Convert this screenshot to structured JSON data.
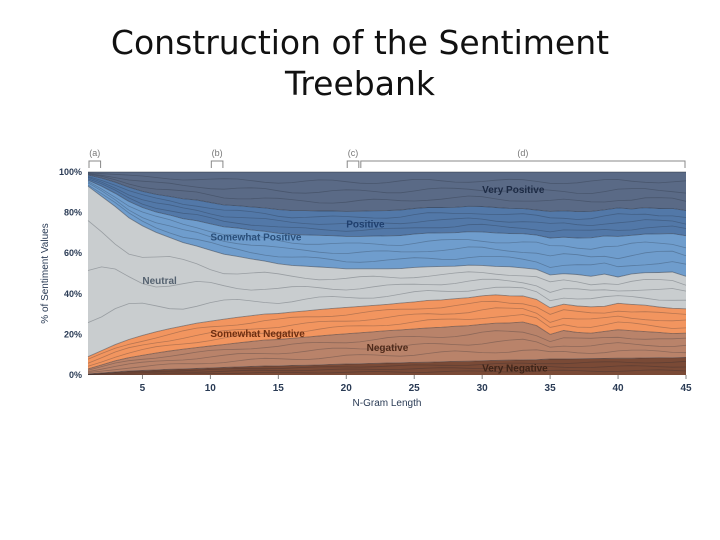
{
  "slide": {
    "title_line1": "Construction of the Sentiment",
    "title_line2": "Treebank"
  },
  "chart_data": {
    "type": "area",
    "stacked": true,
    "normalized": true,
    "xlabel": "N-Gram Length",
    "ylabel": "% of Sentiment Values",
    "x_ticks": [
      5,
      10,
      15,
      20,
      25,
      30,
      35,
      40,
      45
    ],
    "y_ticks": [
      "0%",
      "20%",
      "40%",
      "60%",
      "80%",
      "100%"
    ],
    "xlim": [
      1,
      45
    ],
    "ylim": [
      0,
      100
    ],
    "x": [
      1,
      2,
      3,
      4,
      5,
      6,
      7,
      8,
      9,
      10,
      11,
      12,
      13,
      14,
      15,
      16,
      17,
      18,
      19,
      20,
      21,
      22,
      23,
      24,
      25,
      26,
      27,
      28,
      29,
      30,
      31,
      32,
      33,
      34,
      35,
      36,
      37,
      38,
      39,
      40,
      41,
      42,
      43,
      44,
      45
    ],
    "series": [
      {
        "name": "Very Negative",
        "color": "#7a4a36",
        "values": [
          0.5,
          1,
          1.5,
          2,
          2.2,
          2.5,
          2.8,
          3,
          3.2,
          3.5,
          3.7,
          4,
          4.2,
          4.4,
          4.5,
          4.7,
          4.8,
          5,
          5.2,
          5.4,
          5.5,
          5.7,
          5.9,
          6,
          6.2,
          6.3,
          6.5,
          6.7,
          6.8,
          7,
          7.2,
          7.4,
          7.5,
          7.6,
          7.8,
          7.9,
          8,
          8.1,
          8.2,
          8.3,
          8.3,
          8.4,
          8.5,
          8.5,
          8.6
        ]
      },
      {
        "name": "Negative",
        "color": "#b9836a",
        "values": [
          2.5,
          4,
          5.5,
          6.5,
          7.5,
          8.3,
          9,
          9.7,
          10.3,
          10.8,
          11.3,
          11.8,
          12.3,
          12.7,
          13,
          13.4,
          13.8,
          14.2,
          14.6,
          14.9,
          15.3,
          15.6,
          15.9,
          16.2,
          16.5,
          16.8,
          17,
          17.3,
          17.5,
          18,
          18.3,
          18.5,
          18.8,
          17,
          12,
          14,
          13,
          12.5,
          13.5,
          14,
          13.5,
          13,
          12.5,
          12,
          12
        ]
      },
      {
        "name": "Somewhat Negative",
        "color": "#f2955f",
        "values": [
          6,
          7,
          8,
          9,
          9.8,
          10.5,
          11,
          11.5,
          12,
          12.2,
          12.5,
          12.6,
          12.7,
          12.8,
          12.8,
          12.9,
          13,
          13,
          13,
          13,
          13,
          13,
          13,
          13.2,
          13.3,
          13.5,
          13.5,
          13.6,
          13.8,
          14,
          14,
          13.5,
          13,
          13,
          13,
          13,
          13,
          13,
          12.5,
          13,
          13,
          13,
          12.5,
          12.5,
          12
        ]
      },
      {
        "name": "Neutral",
        "color": "#c9cdcf",
        "values": [
          84,
          76,
          68,
          60,
          54,
          49,
          45,
          41,
          38,
          35,
          32,
          30,
          28,
          26,
          24.5,
          23,
          22,
          21,
          20,
          19,
          18.5,
          18,
          17.5,
          17,
          17,
          16.5,
          16.5,
          16,
          16,
          15,
          14,
          14.5,
          14,
          15,
          16,
          15,
          15.5,
          15,
          16,
          13,
          15,
          16,
          17,
          18,
          16
        ]
      },
      {
        "name": "Somewhat Positive",
        "color": "#6f9dcd",
        "values": [
          3,
          5,
          6.5,
          8,
          9,
          10,
          11,
          11.8,
          12.5,
          13,
          13.5,
          14,
          14.3,
          14.6,
          15,
          15.2,
          15.4,
          15.6,
          15.8,
          16,
          16,
          16.1,
          16.2,
          16.3,
          16.4,
          16.5,
          16.5,
          16.5,
          16.5,
          16.5,
          16.5,
          16.5,
          17,
          17,
          18,
          18,
          18,
          19,
          19,
          20,
          19,
          19,
          19,
          19,
          20
        ]
      },
      {
        "name": "Positive",
        "color": "#5278a8",
        "values": [
          2.5,
          4,
          5.5,
          7,
          8,
          8.7,
          9.2,
          9.8,
          10.2,
          10.5,
          10.8,
          11,
          11.3,
          11.5,
          11.7,
          11.8,
          12,
          12,
          12.2,
          12.3,
          12.4,
          12.5,
          12.5,
          12.6,
          12.6,
          12.6,
          12.5,
          12.5,
          12.5,
          12.5,
          12.5,
          12.5,
          12.5,
          12.5,
          13,
          13,
          13,
          13,
          13,
          14,
          13,
          13,
          12.5,
          12.5,
          12.4
        ]
      },
      {
        "name": "Very Positive",
        "color": "#5a6a86",
        "values": [
          1.5,
          3,
          5,
          7.5,
          9.5,
          11,
          12,
          13.2,
          13.8,
          15,
          16.2,
          16.6,
          17.2,
          17.6,
          18.5,
          19,
          19,
          19.2,
          19.2,
          19.4,
          19.3,
          19.1,
          19,
          18.7,
          18,
          17.4,
          17.5,
          17.4,
          16.9,
          17,
          17.5,
          18.1,
          18.2,
          18.9,
          19.2,
          19.1,
          19.5,
          19.4,
          18.8,
          17.7,
          18.2,
          17.6,
          18,
          18,
          19
        ]
      }
    ],
    "annotations": [
      {
        "label": "(a)",
        "from": 1,
        "to": 2
      },
      {
        "label": "(b)",
        "from": 10,
        "to": 11
      },
      {
        "label": "(c)",
        "from": 20,
        "to": 21
      },
      {
        "label": "(d)",
        "from": 21,
        "to": 45
      }
    ],
    "legend": "inline-labels",
    "grid": false
  }
}
